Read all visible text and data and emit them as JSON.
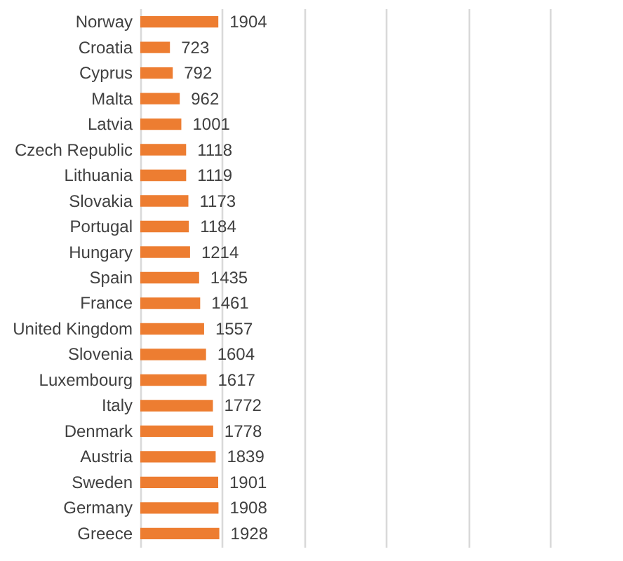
{
  "chart_data": {
    "type": "bar",
    "orientation": "horizontal",
    "categories": [
      "Norway",
      "Croatia",
      "Cyprus",
      "Malta",
      "Latvia",
      "Czech Republic",
      "Lithuania",
      "Slovakia",
      "Portugal",
      "Hungary",
      "Spain",
      "France",
      "United Kingdom",
      "Slovenia",
      "Luxembourg",
      "Italy",
      "Denmark",
      "Austria",
      "Sweden",
      "Germany",
      "Greece"
    ],
    "values": [
      1904,
      723,
      792,
      962,
      1001,
      1118,
      1119,
      1173,
      1184,
      1214,
      1435,
      1461,
      1557,
      1604,
      1617,
      1772,
      1778,
      1839,
      1901,
      1908,
      1928
    ],
    "color": "#ed7d31",
    "xlim": [
      0,
      10000
    ],
    "xticks": [
      {
        "value": 0,
        "label": null
      },
      {
        "value": 2000,
        "label": null
      },
      {
        "value": 4000,
        "label": null
      },
      {
        "value": 6000,
        "label": null
      },
      {
        "value": 8000,
        "label": null
      },
      {
        "value": 10000,
        "label": null
      }
    ],
    "grid": "x",
    "tick_labels": false,
    "data_labels": true
  }
}
